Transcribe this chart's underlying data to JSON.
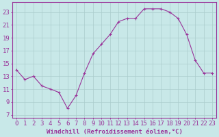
{
  "x": [
    0,
    1,
    2,
    3,
    4,
    5,
    6,
    7,
    8,
    9,
    10,
    11,
    12,
    13,
    14,
    15,
    16,
    17,
    18,
    19,
    20,
    21,
    22,
    23
  ],
  "y": [
    14,
    12.5,
    13,
    11.5,
    11,
    10.5,
    8,
    10,
    13.5,
    16.5,
    18,
    19.5,
    21.5,
    22,
    22,
    23.5,
    23.5,
    23.5,
    23,
    22,
    19.5,
    15.5,
    13.5,
    13.5
  ],
  "line_color": "#993399",
  "marker": "+",
  "marker_size": 3,
  "bg_color": "#c8e8e8",
  "grid_color": "#aacccc",
  "xlabel": "Windchill (Refroidissement éolien,°C)",
  "xlabel_color": "#993399",
  "ylabel_ticks": [
    7,
    9,
    11,
    13,
    15,
    17,
    19,
    21,
    23
  ],
  "xtick_labels": [
    "0",
    "1",
    "2",
    "3",
    "4",
    "5",
    "6",
    "7",
    "8",
    "9",
    "10",
    "11",
    "12",
    "13",
    "14",
    "15",
    "16",
    "17",
    "18",
    "19",
    "20",
    "21",
    "22",
    "23"
  ],
  "ylim": [
    6.5,
    24.5
  ],
  "xlim": [
    -0.5,
    23.5
  ],
  "tick_color": "#993399",
  "axis_color": "#993399",
  "font_size": 6.5
}
